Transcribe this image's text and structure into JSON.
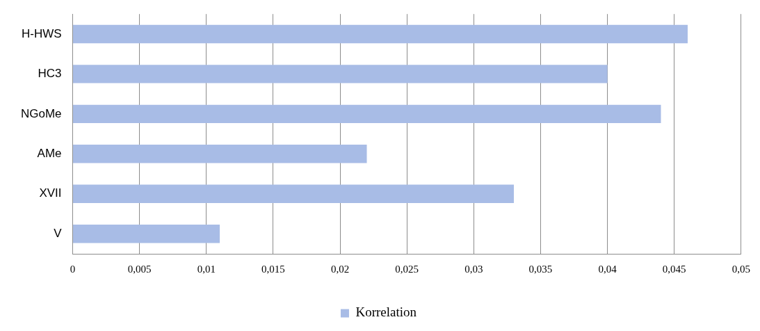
{
  "chart_data": {
    "type": "bar",
    "orientation": "horizontal",
    "categories": [
      "H-HWS",
      "HC3",
      "NGoMe",
      "AMe",
      "XVII",
      "V"
    ],
    "series": [
      {
        "name": "Korrelation",
        "color": "#a8bce6",
        "values": [
          0.046,
          0.04,
          0.044,
          0.022,
          0.033,
          0.011
        ]
      }
    ],
    "xlim": [
      0,
      0.05
    ],
    "xticks": [
      0,
      {
        "value": 0.005,
        "label": "0,005"
      },
      {
        "value": 0.01,
        "label": "0,01"
      },
      {
        "value": 0.015,
        "label": "0,015"
      },
      {
        "value": 0.02,
        "label": "0,02"
      },
      {
        "value": 0.025,
        "label": "0,025"
      },
      {
        "value": 0.03,
        "label": "0,03"
      },
      {
        "value": 0.035,
        "label": "0,035"
      },
      {
        "value": 0.04,
        "label": "0,04"
      },
      {
        "value": 0.045,
        "label": "0,045"
      },
      {
        "value": 0.05,
        "label": "0,05"
      }
    ],
    "grid": "x",
    "legend": "bottom"
  }
}
